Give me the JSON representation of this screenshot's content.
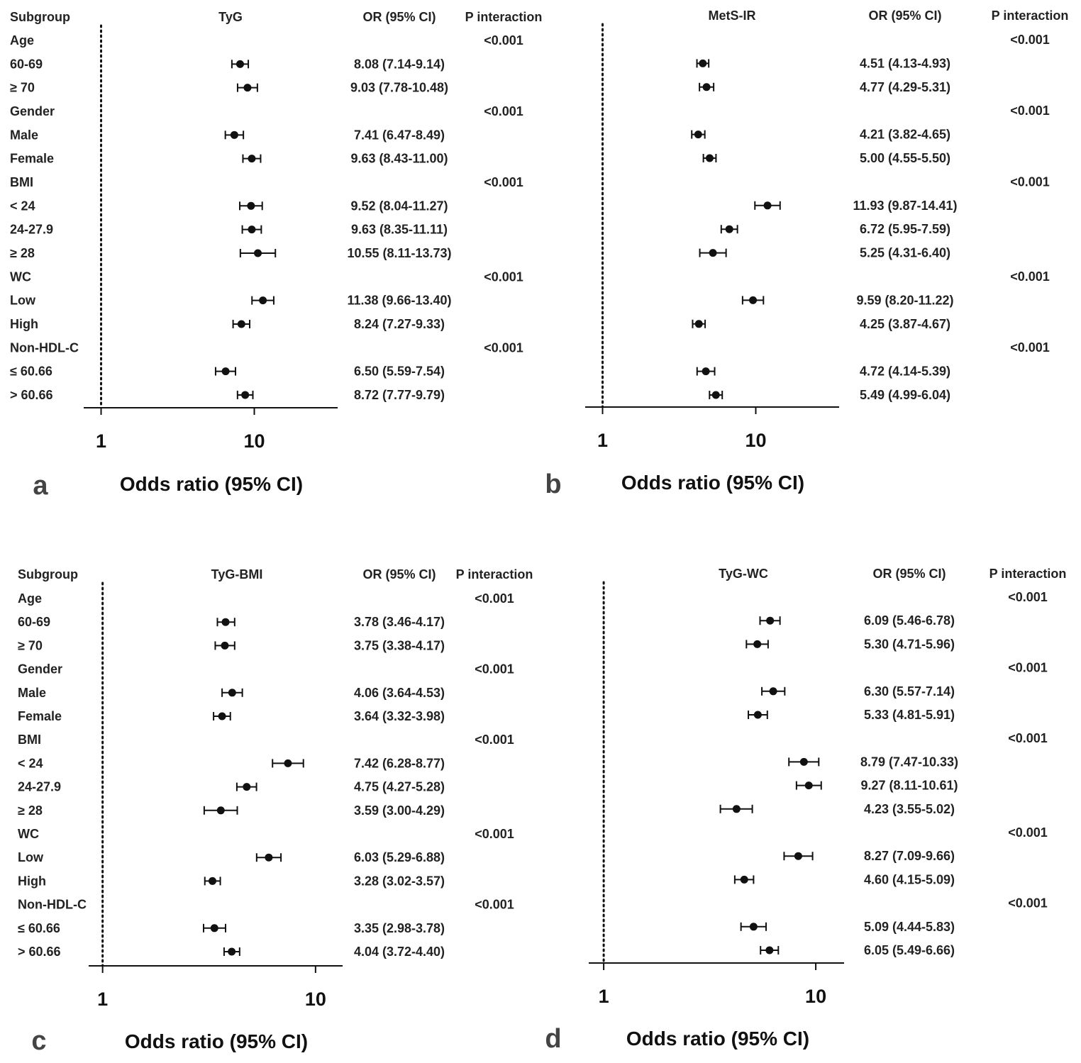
{
  "chart_data": [
    {
      "type": "forest",
      "panel": "a",
      "title": "TyG",
      "subgroup_header": "Subgroup",
      "or_header": "OR (95% CI)",
      "p_header": "P interaction",
      "xlabel": "Odds ratio (95% CI)",
      "x_scale": "log",
      "xlim": [
        0.77,
        35
      ],
      "reference_line": 1,
      "ticks": [
        "1",
        "10"
      ],
      "rows": [
        {
          "label": "Age",
          "p": "<0.001"
        },
        {
          "label": "60-69",
          "or": 8.08,
          "lo": 7.14,
          "hi": 9.14,
          "text": "8.08 (7.14-9.14)"
        },
        {
          "label": "≥ 70",
          "or": 9.03,
          "lo": 7.78,
          "hi": 10.48,
          "text": "9.03 (7.78-10.48)"
        },
        {
          "label": "Gender",
          "p": "<0.001"
        },
        {
          "label": "Male",
          "or": 7.41,
          "lo": 6.47,
          "hi": 8.49,
          "text": "7.41 (6.47-8.49)"
        },
        {
          "label": "Female",
          "or": 9.63,
          "lo": 8.43,
          "hi": 11.0,
          "text": "9.63 (8.43-11.00)"
        },
        {
          "label": "BMI",
          "p": "<0.001"
        },
        {
          "label": "< 24",
          "or": 9.52,
          "lo": 8.04,
          "hi": 11.27,
          "text": "9.52 (8.04-11.27)"
        },
        {
          "label": "24-27.9",
          "or": 9.63,
          "lo": 8.35,
          "hi": 11.11,
          "text": "9.63 (8.35-11.11)"
        },
        {
          "label": "≥ 28",
          "or": 10.55,
          "lo": 8.11,
          "hi": 13.73,
          "text": "10.55 (8.11-13.73)"
        },
        {
          "label": "WC",
          "p": "<0.001"
        },
        {
          "label": "Low",
          "or": 11.38,
          "lo": 9.66,
          "hi": 13.4,
          "text": "11.38 (9.66-13.40)"
        },
        {
          "label": "High",
          "or": 8.24,
          "lo": 7.27,
          "hi": 9.33,
          "text": "8.24 (7.27-9.33)"
        },
        {
          "label": "Non-HDL-C",
          "p": "<0.001"
        },
        {
          "label": "≤ 60.66",
          "or": 6.5,
          "lo": 5.59,
          "hi": 7.54,
          "text": "6.50 (5.59-7.54)"
        },
        {
          "label": "> 60.66",
          "or": 8.72,
          "lo": 7.77,
          "hi": 9.79,
          "text": "8.72 (7.77-9.79)"
        }
      ]
    },
    {
      "type": "forest",
      "panel": "b",
      "title": "MetS-IR",
      "or_header": "OR (95% CI)",
      "p_header": "P interaction",
      "xlabel": "Odds ratio (95% CI)",
      "x_scale": "log",
      "xlim": [
        0.77,
        35
      ],
      "reference_line": 1,
      "ticks": [
        "1",
        "10"
      ],
      "rows": [
        {
          "p": "<0.001"
        },
        {
          "or": 4.51,
          "lo": 4.13,
          "hi": 4.93,
          "text": "4.51 (4.13-4.93)"
        },
        {
          "or": 4.77,
          "lo": 4.29,
          "hi": 5.31,
          "text": "4.77 (4.29-5.31)"
        },
        {
          "p": "<0.001"
        },
        {
          "or": 4.21,
          "lo": 3.82,
          "hi": 4.65,
          "text": "4.21 (3.82-4.65)"
        },
        {
          "or": 5.0,
          "lo": 4.55,
          "hi": 5.5,
          "text": "5.00 (4.55-5.50)"
        },
        {
          "p": "<0.001"
        },
        {
          "or": 11.93,
          "lo": 9.87,
          "hi": 14.41,
          "text": "11.93 (9.87-14.41)"
        },
        {
          "or": 6.72,
          "lo": 5.95,
          "hi": 7.59,
          "text": "6.72 (5.95-7.59)"
        },
        {
          "or": 5.25,
          "lo": 4.31,
          "hi": 6.4,
          "text": "5.25 (4.31-6.40)"
        },
        {
          "p": "<0.001"
        },
        {
          "or": 9.59,
          "lo": 8.2,
          "hi": 11.22,
          "text": "9.59 (8.20-11.22)"
        },
        {
          "or": 4.25,
          "lo": 3.87,
          "hi": 4.67,
          "text": "4.25 (3.87-4.67)"
        },
        {
          "p": "<0.001"
        },
        {
          "or": 4.72,
          "lo": 4.14,
          "hi": 5.39,
          "text": "4.72 (4.14-5.39)"
        },
        {
          "or": 5.49,
          "lo": 4.99,
          "hi": 6.04,
          "text": "5.49 (4.99-6.04)"
        }
      ]
    },
    {
      "type": "forest",
      "panel": "c",
      "title": "TyG-BMI",
      "subgroup_header": "Subgroup",
      "or_header": "OR (95% CI)",
      "p_header": "P interaction",
      "xlabel": "Odds ratio (95% CI)",
      "x_scale": "log",
      "xlim": [
        0.86,
        13.4
      ],
      "reference_line": 1,
      "ticks": [
        "1",
        "10"
      ],
      "rows": [
        {
          "label": "Age",
          "p": "<0.001"
        },
        {
          "label": "60-69",
          "or": 3.78,
          "lo": 3.46,
          "hi": 4.17,
          "text": "3.78 (3.46-4.17)"
        },
        {
          "label": "≥ 70",
          "or": 3.75,
          "lo": 3.38,
          "hi": 4.17,
          "text": "3.75 (3.38-4.17)"
        },
        {
          "label": "Gender",
          "p": "<0.001"
        },
        {
          "label": "Male",
          "or": 4.06,
          "lo": 3.64,
          "hi": 4.53,
          "text": "4.06 (3.64-4.53)"
        },
        {
          "label": "Female",
          "or": 3.64,
          "lo": 3.32,
          "hi": 3.98,
          "text": "3.64 (3.32-3.98)"
        },
        {
          "label": "BMI",
          "p": "<0.001"
        },
        {
          "label": "< 24",
          "or": 7.42,
          "lo": 6.28,
          "hi": 8.77,
          "text": "7.42 (6.28-8.77)"
        },
        {
          "label": "24-27.9",
          "or": 4.75,
          "lo": 4.27,
          "hi": 5.28,
          "text": "4.75 (4.27-5.28)"
        },
        {
          "label": "≥ 28",
          "or": 3.59,
          "lo": 3.0,
          "hi": 4.29,
          "text": "3.59 (3.00-4.29)"
        },
        {
          "label": "WC",
          "p": "<0.001"
        },
        {
          "label": "Low",
          "or": 6.03,
          "lo": 5.29,
          "hi": 6.88,
          "text": "6.03 (5.29-6.88)"
        },
        {
          "label": "High",
          "or": 3.28,
          "lo": 3.02,
          "hi": 3.57,
          "text": "3.28 (3.02-3.57)"
        },
        {
          "label": "Non-HDL-C",
          "p": "<0.001"
        },
        {
          "label": "≤ 60.66",
          "or": 3.35,
          "lo": 2.98,
          "hi": 3.78,
          "text": "3.35 (2.98-3.78)"
        },
        {
          "label": "> 60.66",
          "or": 4.04,
          "lo": 3.72,
          "hi": 4.4,
          "text": "4.04 (3.72-4.40)"
        }
      ]
    },
    {
      "type": "forest",
      "panel": "d",
      "title": "TyG-WC",
      "or_header": "OR (95% CI)",
      "p_header": "P interaction",
      "xlabel": "Odds ratio (95% CI)",
      "x_scale": "log",
      "xlim": [
        0.85,
        13.6
      ],
      "reference_line": 1,
      "ticks": [
        "1",
        "10"
      ],
      "rows": [
        {
          "p": "<0.001"
        },
        {
          "or": 6.09,
          "lo": 5.46,
          "hi": 6.78,
          "text": "6.09 (5.46-6.78)"
        },
        {
          "or": 5.3,
          "lo": 4.71,
          "hi": 5.96,
          "text": "5.30 (4.71-5.96)"
        },
        {
          "p": "<0.001"
        },
        {
          "or": 6.3,
          "lo": 5.57,
          "hi": 7.14,
          "text": "6.30 (5.57-7.14)"
        },
        {
          "or": 5.33,
          "lo": 4.81,
          "hi": 5.91,
          "text": "5.33 (4.81-5.91)"
        },
        {
          "p": "<0.001"
        },
        {
          "or": 8.79,
          "lo": 7.47,
          "hi": 10.33,
          "text": "8.79 (7.47-10.33)"
        },
        {
          "or": 9.27,
          "lo": 8.11,
          "hi": 10.61,
          "text": "9.27 (8.11-10.61)"
        },
        {
          "or": 4.23,
          "lo": 3.55,
          "hi": 5.02,
          "text": "4.23 (3.55-5.02)"
        },
        {
          "p": "<0.001"
        },
        {
          "or": 8.27,
          "lo": 7.09,
          "hi": 9.66,
          "text": "8.27 (7.09-9.66)"
        },
        {
          "or": 4.6,
          "lo": 4.15,
          "hi": 5.09,
          "text": "4.60 (4.15-5.09)"
        },
        {
          "p": "<0.001"
        },
        {
          "or": 5.09,
          "lo": 4.44,
          "hi": 5.83,
          "text": "5.09 (4.44-5.83)"
        },
        {
          "or": 6.05,
          "lo": 5.49,
          "hi": 6.66,
          "text": "6.05 (5.49-6.66)"
        }
      ]
    }
  ]
}
